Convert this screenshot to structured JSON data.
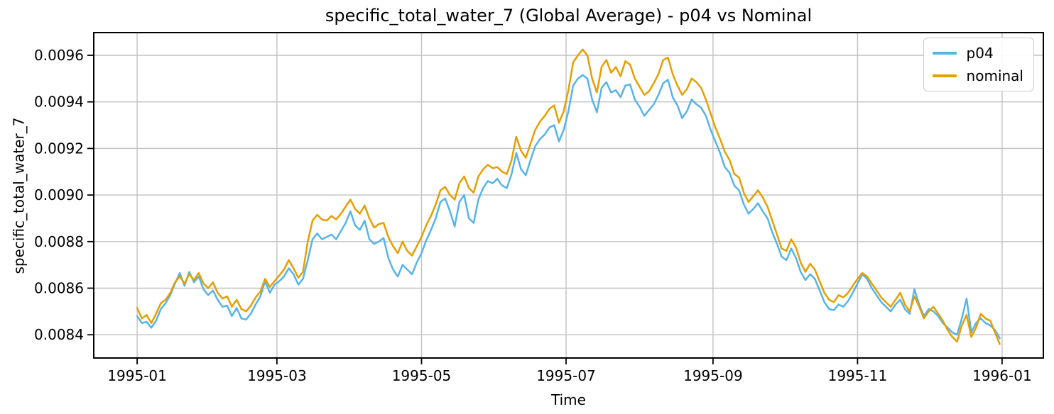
{
  "figure": {
    "title": "specific_total_water_7 (Global Average) - p04 vs Nominal",
    "xlabel": "Time",
    "ylabel": "specific_total_water_7"
  },
  "chart_data": {
    "type": "line",
    "title": "specific_total_water_7 (Global Average) - p04 vs Nominal",
    "xlabel": "Time",
    "ylabel": "specific_total_water_7",
    "grid": true,
    "legend_position": "upper right",
    "x_unit": "days since 1995-01-01",
    "xlim_days": [
      -18.3,
      382.4
    ],
    "ylim": [
      0.0083,
      0.0096974
    ],
    "x_ticks": [
      {
        "day": 0,
        "label": "1995-01"
      },
      {
        "day": 59,
        "label": "1995-03"
      },
      {
        "day": 120,
        "label": "1995-05"
      },
      {
        "day": 181,
        "label": "1995-07"
      },
      {
        "day": 243,
        "label": "1995-09"
      },
      {
        "day": 304,
        "label": "1995-11"
      },
      {
        "day": 365,
        "label": "1996-01"
      }
    ],
    "y_ticks": [
      {
        "value": 0.0084,
        "label": "0.0084"
      },
      {
        "value": 0.0086,
        "label": "0.0086"
      },
      {
        "value": 0.0088,
        "label": "0.0088"
      },
      {
        "value": 0.009,
        "label": "0.0090"
      },
      {
        "value": 0.0092,
        "label": "0.0092"
      },
      {
        "value": 0.0094,
        "label": "0.0094"
      },
      {
        "value": 0.0096,
        "label": "0.0096"
      }
    ],
    "x_days": [
      0,
      2,
      4,
      6,
      8,
      10,
      12,
      14,
      16,
      18,
      20,
      22,
      24,
      26,
      28,
      30,
      32,
      34,
      36,
      38,
      40,
      42,
      44,
      46,
      48,
      50,
      52,
      54,
      56,
      58,
      60,
      62,
      64,
      66,
      68,
      70,
      72,
      74,
      76,
      78,
      80,
      82,
      84,
      86,
      88,
      90,
      92,
      94,
      96,
      98,
      100,
      102,
      104,
      106,
      108,
      110,
      112,
      114,
      116,
      118,
      120,
      122,
      124,
      126,
      128,
      130,
      132,
      134,
      136,
      138,
      140,
      142,
      144,
      146,
      148,
      150,
      152,
      154,
      156,
      158,
      160,
      162,
      164,
      166,
      168,
      170,
      172,
      174,
      176,
      178,
      180,
      182,
      184,
      186,
      188,
      190,
      192,
      194,
      196,
      198,
      200,
      202,
      204,
      206,
      208,
      210,
      212,
      214,
      216,
      218,
      220,
      222,
      224,
      226,
      228,
      230,
      232,
      234,
      236,
      238,
      240,
      242,
      244,
      246,
      248,
      250,
      252,
      254,
      256,
      258,
      260,
      262,
      264,
      266,
      268,
      270,
      272,
      274,
      276,
      278,
      280,
      282,
      284,
      286,
      288,
      290,
      292,
      294,
      296,
      298,
      300,
      302,
      304,
      306,
      308,
      310,
      312,
      314,
      316,
      318,
      320,
      322,
      324,
      326,
      328,
      330,
      332,
      334,
      336,
      338,
      340,
      342,
      344,
      346,
      348,
      350,
      352,
      354,
      356,
      358,
      360,
      362,
      364
    ],
    "series": [
      {
        "name": "p04",
        "color": "#56B4E9",
        "values": [
          0.00848,
          0.00845,
          0.008455,
          0.00843,
          0.00846,
          0.00851,
          0.008535,
          0.00857,
          0.00862,
          0.008665,
          0.00861,
          0.00867,
          0.008625,
          0.00865,
          0.008595,
          0.00857,
          0.00859,
          0.00855,
          0.00852,
          0.008525,
          0.00848,
          0.008515,
          0.00847,
          0.008465,
          0.00849,
          0.00853,
          0.008565,
          0.00863,
          0.00858,
          0.008615,
          0.00863,
          0.00865,
          0.008685,
          0.00866,
          0.008615,
          0.00864,
          0.00872,
          0.00881,
          0.008835,
          0.00881,
          0.00882,
          0.00883,
          0.00881,
          0.008845,
          0.00888,
          0.00893,
          0.00887,
          0.00885,
          0.00889,
          0.00881,
          0.00879,
          0.0088,
          0.008815,
          0.00873,
          0.00868,
          0.00865,
          0.0087,
          0.00868,
          0.00866,
          0.00871,
          0.00875,
          0.008805,
          0.00885,
          0.0089,
          0.00897,
          0.008985,
          0.00893,
          0.008865,
          0.00897,
          0.009,
          0.0089,
          0.00888,
          0.00898,
          0.00903,
          0.00906,
          0.00905,
          0.00907,
          0.00904,
          0.00903,
          0.00909,
          0.00918,
          0.00911,
          0.009085,
          0.00915,
          0.00921,
          0.00924,
          0.00926,
          0.00929,
          0.0093,
          0.00923,
          0.00928,
          0.00936,
          0.00947,
          0.0095,
          0.009515,
          0.0095,
          0.00941,
          0.009355,
          0.00946,
          0.009485,
          0.00944,
          0.00945,
          0.00942,
          0.00947,
          0.009475,
          0.00941,
          0.00938,
          0.00934,
          0.009365,
          0.00939,
          0.00943,
          0.00948,
          0.009495,
          0.00942,
          0.009385,
          0.00933,
          0.00936,
          0.00941,
          0.00939,
          0.009375,
          0.00934,
          0.00928,
          0.00923,
          0.00918,
          0.00912,
          0.009095,
          0.00904,
          0.00902,
          0.00896,
          0.00892,
          0.00894,
          0.008965,
          0.00893,
          0.0089,
          0.00884,
          0.00879,
          0.008735,
          0.00872,
          0.00877,
          0.00873,
          0.00867,
          0.008635,
          0.00866,
          0.00864,
          0.00859,
          0.00854,
          0.00851,
          0.008505,
          0.00853,
          0.00852,
          0.008545,
          0.00858,
          0.00862,
          0.00866,
          0.00864,
          0.0086,
          0.00857,
          0.00854,
          0.00852,
          0.0085,
          0.00853,
          0.00855,
          0.00851,
          0.00849,
          0.008595,
          0.00853,
          0.00848,
          0.00851,
          0.0085,
          0.00848,
          0.00845,
          0.00843,
          0.00841,
          0.0084,
          0.00847,
          0.008555,
          0.00841,
          0.00845,
          0.00847,
          0.00845,
          0.00844,
          0.00842,
          0.008385
        ]
      },
      {
        "name": "nominal",
        "color": "#E69F00",
        "values": [
          0.008515,
          0.00847,
          0.008485,
          0.00845,
          0.00849,
          0.008535,
          0.00855,
          0.00858,
          0.008625,
          0.00865,
          0.00862,
          0.00866,
          0.008635,
          0.008665,
          0.00862,
          0.0086,
          0.008625,
          0.00858,
          0.008555,
          0.008565,
          0.00852,
          0.00855,
          0.00851,
          0.0085,
          0.008525,
          0.00856,
          0.008585,
          0.00864,
          0.008605,
          0.00863,
          0.008655,
          0.00868,
          0.00872,
          0.008685,
          0.008645,
          0.00867,
          0.0088,
          0.00889,
          0.008915,
          0.008895,
          0.00889,
          0.00891,
          0.008895,
          0.00892,
          0.00895,
          0.00898,
          0.00894,
          0.00892,
          0.008955,
          0.0089,
          0.00886,
          0.008875,
          0.00888,
          0.00882,
          0.00878,
          0.00875,
          0.0088,
          0.00876,
          0.00874,
          0.00878,
          0.00882,
          0.00887,
          0.00891,
          0.00896,
          0.00902,
          0.009035,
          0.009,
          0.00898,
          0.00905,
          0.00908,
          0.00903,
          0.00901,
          0.00908,
          0.00911,
          0.00913,
          0.009115,
          0.00912,
          0.0091,
          0.00909,
          0.00915,
          0.00925,
          0.00919,
          0.00916,
          0.00922,
          0.00928,
          0.009315,
          0.00934,
          0.00937,
          0.009385,
          0.00931,
          0.00936,
          0.00945,
          0.00957,
          0.0096,
          0.009625,
          0.0096,
          0.0095,
          0.00944,
          0.00955,
          0.00958,
          0.009525,
          0.00955,
          0.00951,
          0.009575,
          0.00956,
          0.0095,
          0.009465,
          0.00943,
          0.009445,
          0.00948,
          0.00952,
          0.00958,
          0.00959,
          0.00952,
          0.00947,
          0.00943,
          0.009455,
          0.0095,
          0.009485,
          0.00946,
          0.00941,
          0.00935,
          0.00929,
          0.00924,
          0.009185,
          0.00915,
          0.00909,
          0.009075,
          0.00901,
          0.00897,
          0.008995,
          0.00902,
          0.00899,
          0.00895,
          0.00889,
          0.00883,
          0.00877,
          0.00876,
          0.00881,
          0.008775,
          0.00871,
          0.00867,
          0.008705,
          0.00868,
          0.00863,
          0.00858,
          0.00855,
          0.00854,
          0.00857,
          0.00856,
          0.00858,
          0.00861,
          0.00864,
          0.008665,
          0.00865,
          0.00862,
          0.00859,
          0.00856,
          0.00854,
          0.00852,
          0.00855,
          0.00858,
          0.00853,
          0.0085,
          0.008565,
          0.00852,
          0.00847,
          0.0085,
          0.00852,
          0.00849,
          0.00846,
          0.00842,
          0.00839,
          0.00837,
          0.00844,
          0.008485,
          0.00839,
          0.00843,
          0.00849,
          0.00847,
          0.00846,
          0.00841,
          0.00836
        ]
      }
    ],
    "style": {
      "grid_color": "#c2c2c2",
      "spine_color": "#000000",
      "tick_color": "#000000",
      "legend_border_color": "#cccccc"
    }
  }
}
